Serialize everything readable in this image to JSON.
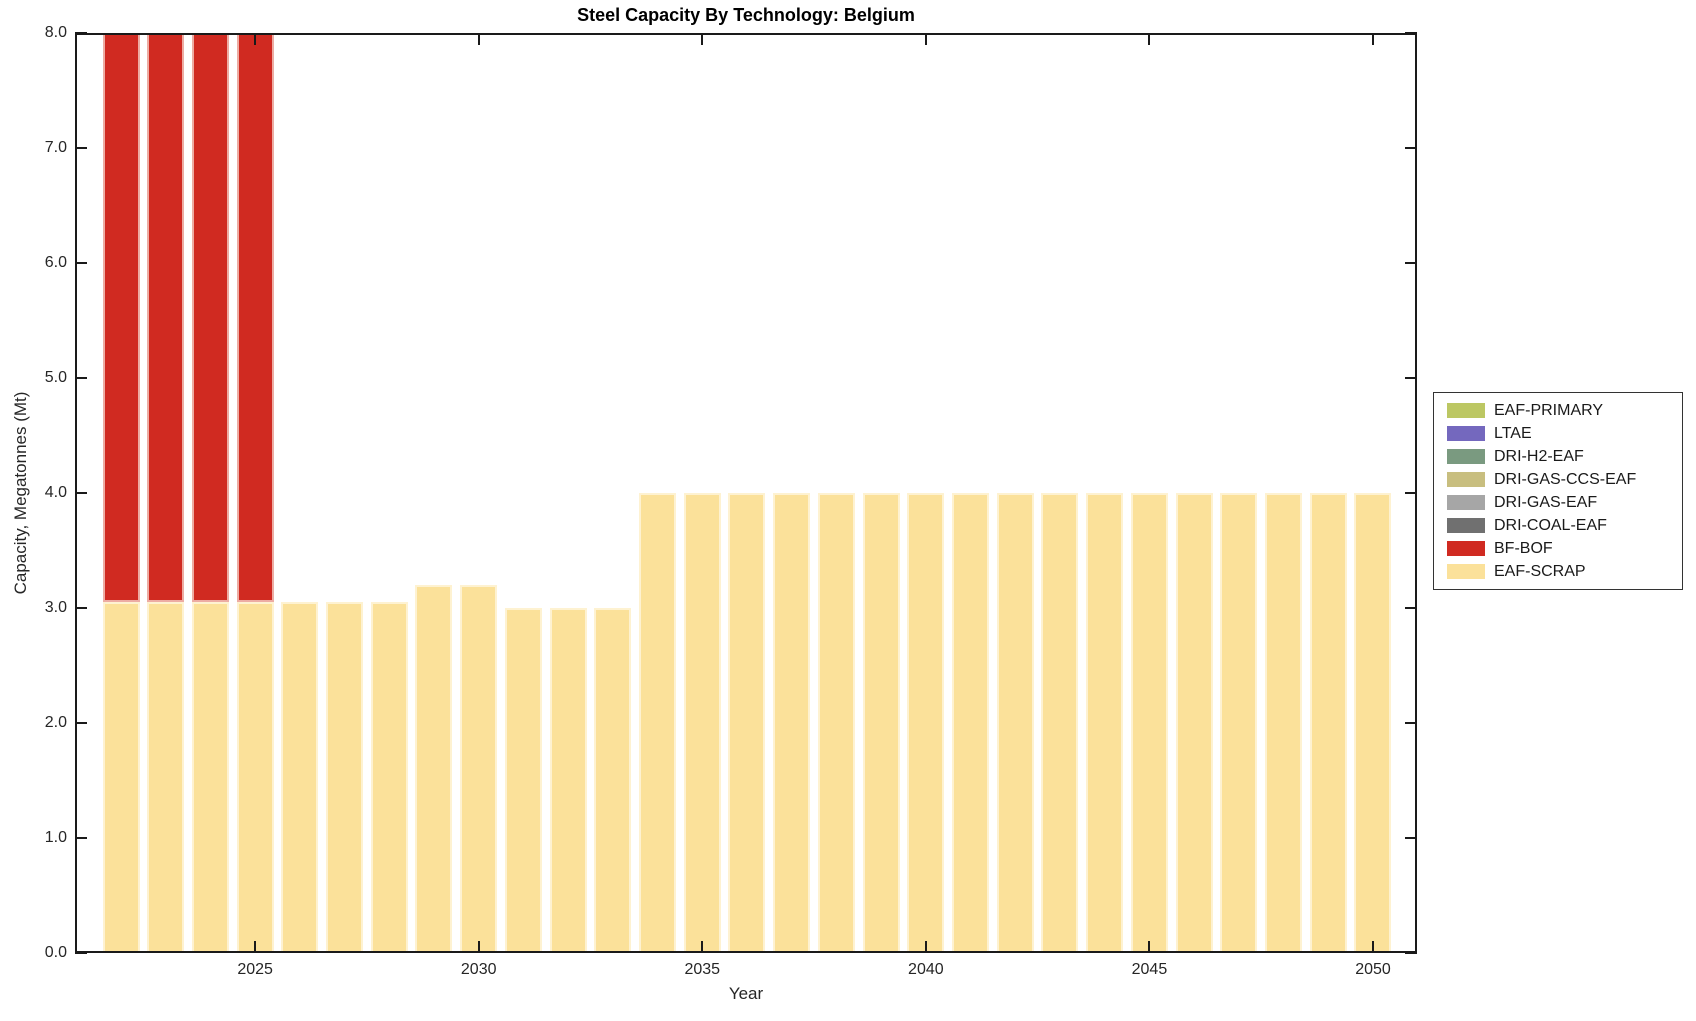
{
  "chart_data": {
    "type": "bar",
    "stacked": true,
    "title": "Steel Capacity By Technology: Belgium",
    "xlabel": "Year",
    "ylabel": "Capacity, Megatonnes (Mt)",
    "x": [
      2022,
      2023,
      2024,
      2025,
      2026,
      2027,
      2028,
      2029,
      2030,
      2031,
      2032,
      2033,
      2034,
      2035,
      2036,
      2037,
      2038,
      2039,
      2040,
      2041,
      2042,
      2043,
      2044,
      2045,
      2046,
      2047,
      2048,
      2049,
      2050
    ],
    "xticks": [
      2025,
      2030,
      2035,
      2040,
      2045,
      2050
    ],
    "ylim": [
      0.0,
      8.0
    ],
    "yticks": [
      0,
      1,
      2,
      3,
      4,
      5,
      6,
      7,
      8
    ],
    "ytick_labels": [
      "0.0",
      "1.0",
      "2.0",
      "3.0",
      "4.0",
      "5.0",
      "6.0",
      "7.0",
      "8.0"
    ],
    "grid": false,
    "legend_position": "right-outside",
    "stack_note": "Series stack bottom-up in reverse legend order (EAF-SCRAP on bottom, BF-BOF above it); BF-BOF bars for 2022-2025 exceed the y-axis maximum and are clipped at 8.0.",
    "series": [
      {
        "name": "EAF-PRIMARY",
        "color": "#bcc763",
        "values": [
          0,
          0,
          0,
          0,
          0,
          0,
          0,
          0,
          0,
          0,
          0,
          0,
          0,
          0,
          0,
          0,
          0,
          0,
          0,
          0,
          0,
          0,
          0,
          0,
          0,
          0,
          0,
          0,
          0
        ]
      },
      {
        "name": "LTAE",
        "color": "#7468be",
        "values": [
          0,
          0,
          0,
          0,
          0,
          0,
          0,
          0,
          0,
          0,
          0,
          0,
          0,
          0,
          0,
          0,
          0,
          0,
          0,
          0,
          0,
          0,
          0,
          0,
          0,
          0,
          0,
          0,
          0
        ]
      },
      {
        "name": "DRI-H2-EAF",
        "color": "#7a9a80",
        "values": [
          0,
          0,
          0,
          0,
          0,
          0,
          0,
          0,
          0,
          0,
          0,
          0,
          0,
          0,
          0,
          0,
          0,
          0,
          0,
          0,
          0,
          0,
          0,
          0,
          0,
          0,
          0,
          0,
          0
        ]
      },
      {
        "name": "DRI-GAS-CCS-EAF",
        "color": "#c8be7f",
        "values": [
          0,
          0,
          0,
          0,
          0,
          0,
          0,
          0,
          0,
          0,
          0,
          0,
          0,
          0,
          0,
          0,
          0,
          0,
          0,
          0,
          0,
          0,
          0,
          0,
          0,
          0,
          0,
          0,
          0
        ]
      },
      {
        "name": "DRI-GAS-EAF",
        "color": "#a6a6a6",
        "values": [
          0,
          0,
          0,
          0,
          0,
          0,
          0,
          0,
          0,
          0,
          0,
          0,
          0,
          0,
          0,
          0,
          0,
          0,
          0,
          0,
          0,
          0,
          0,
          0,
          0,
          0,
          0,
          0,
          0
        ]
      },
      {
        "name": "DRI-COAL-EAF",
        "color": "#707070",
        "values": [
          0,
          0,
          0,
          0,
          0,
          0,
          0,
          0,
          0,
          0,
          0,
          0,
          0,
          0,
          0,
          0,
          0,
          0,
          0,
          0,
          0,
          0,
          0,
          0,
          0,
          0,
          0,
          0,
          0
        ]
      },
      {
        "name": "BF-BOF",
        "color": "#d02a21",
        "values": [
          5.0,
          5.0,
          5.0,
          5.0,
          0,
          0,
          0,
          0,
          0,
          0,
          0,
          0,
          0,
          0,
          0,
          0,
          0,
          0,
          0,
          0,
          0,
          0,
          0,
          0,
          0,
          0,
          0,
          0,
          0
        ]
      },
      {
        "name": "EAF-SCRAP",
        "color": "#fbe19a",
        "values": [
          3.05,
          3.05,
          3.05,
          3.05,
          3.05,
          3.05,
          3.05,
          3.2,
          3.2,
          3.0,
          3.0,
          3.0,
          4.0,
          4.0,
          4.0,
          4.0,
          4.0,
          4.0,
          4.0,
          4.0,
          4.0,
          4.0,
          4.0,
          4.0,
          4.0,
          4.0,
          4.0,
          4.0,
          4.0
        ]
      }
    ],
    "colors": {
      "axis": "#1a1a1a",
      "text": "#262626",
      "background": "#ffffff"
    }
  }
}
